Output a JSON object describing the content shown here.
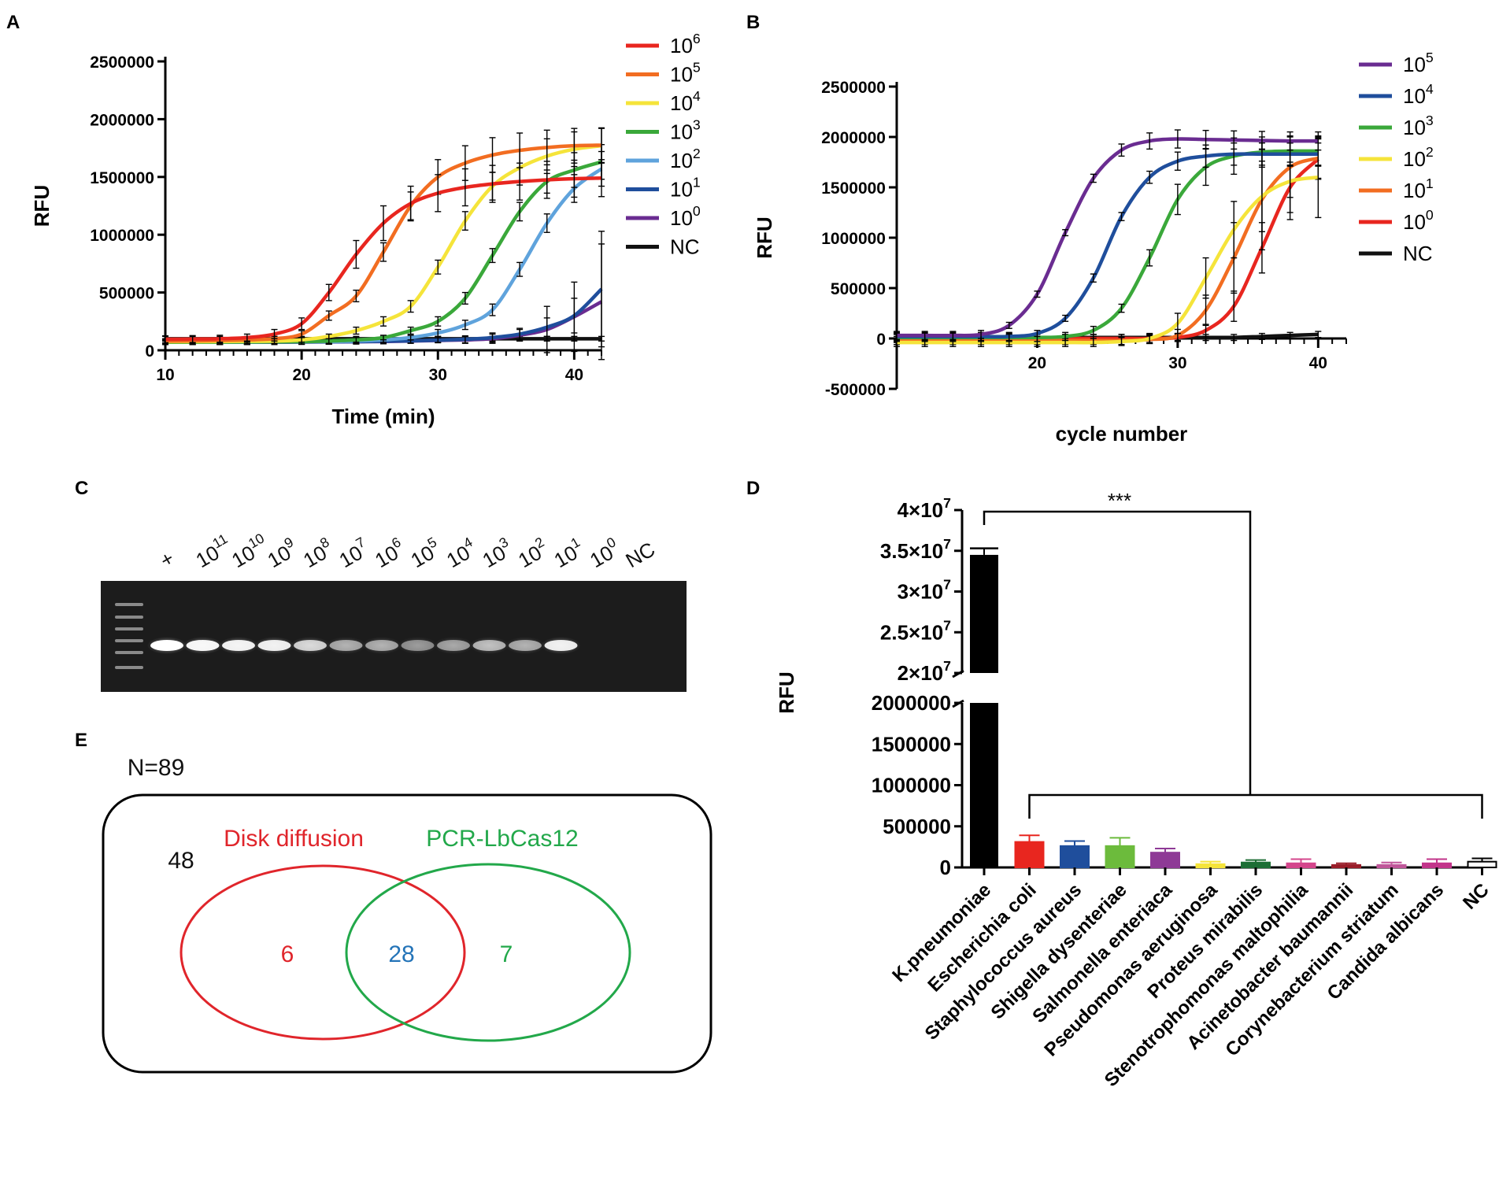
{
  "chart_data": [
    {
      "panel": "A",
      "type": "line",
      "xlabel": "Time (min)",
      "ylabel": "RFU",
      "xlim": [
        10,
        42
      ],
      "ylim": [
        0,
        2500000
      ],
      "xticks": [
        10,
        20,
        30,
        40
      ],
      "yticks": [
        0,
        500000,
        1000000,
        1500000,
        2000000,
        2500000
      ],
      "ytick_labels": [
        "0",
        "500000",
        "1000000",
        "1500000",
        "2000000",
        "2500000"
      ],
      "x": [
        10,
        12,
        14,
        16,
        18,
        20,
        22,
        24,
        26,
        28,
        30,
        32,
        34,
        36,
        38,
        40,
        42
      ],
      "legend_position": "top-right",
      "series": [
        {
          "name": "10^6",
          "label_base": "10",
          "label_exp": "6",
          "color": "#e8261f",
          "values": [
            95000,
            97000,
            100000,
            110000,
            140000,
            230000,
            500000,
            830000,
            1100000,
            1270000,
            1360000,
            1410000,
            1440000,
            1460000,
            1475000,
            1485000,
            1490000
          ],
          "errors": [
            30000,
            30000,
            30000,
            30000,
            40000,
            50000,
            70000,
            120000,
            150000,
            150000,
            160000,
            160000,
            160000,
            160000,
            160000,
            160000,
            160000
          ]
        },
        {
          "name": "10^5",
          "label_base": "10",
          "label_exp": "5",
          "color": "#f26d21",
          "values": [
            80000,
            82000,
            85000,
            90000,
            100000,
            140000,
            300000,
            470000,
            850000,
            1250000,
            1500000,
            1620000,
            1690000,
            1730000,
            1755000,
            1770000,
            1775000
          ],
          "errors": [
            20000,
            20000,
            20000,
            20000,
            20000,
            30000,
            40000,
            50000,
            80000,
            120000,
            150000,
            150000,
            150000,
            150000,
            150000,
            150000,
            150000
          ]
        },
        {
          "name": "10^4",
          "label_base": "10",
          "label_exp": "4",
          "color": "#f5e43a",
          "values": [
            75000,
            75000,
            76000,
            78000,
            80000,
            90000,
            120000,
            170000,
            250000,
            380000,
            720000,
            1120000,
            1420000,
            1580000,
            1680000,
            1740000,
            1770000
          ],
          "errors": [
            20000,
            20000,
            20000,
            20000,
            20000,
            20000,
            20000,
            30000,
            40000,
            50000,
            60000,
            80000,
            120000,
            150000,
            150000,
            150000,
            150000
          ]
        },
        {
          "name": "10^3",
          "label_base": "10",
          "label_exp": "3",
          "color": "#3aa83a",
          "values": [
            70000,
            70000,
            71000,
            72000,
            73000,
            75000,
            80000,
            90000,
            110000,
            170000,
            250000,
            450000,
            820000,
            1200000,
            1460000,
            1560000,
            1630000
          ],
          "errors": [
            20000,
            20000,
            20000,
            20000,
            20000,
            20000,
            20000,
            20000,
            20000,
            30000,
            40000,
            50000,
            60000,
            80000,
            100000,
            150000,
            150000
          ]
        },
        {
          "name": "10^2",
          "label_base": "10",
          "label_exp": "2",
          "color": "#5fa3dc",
          "values": [
            70000,
            70000,
            70000,
            71000,
            72000,
            73000,
            75000,
            80000,
            90000,
            110000,
            150000,
            220000,
            350000,
            700000,
            1100000,
            1400000,
            1570000
          ],
          "errors": [
            20000,
            20000,
            20000,
            20000,
            20000,
            20000,
            20000,
            20000,
            20000,
            20000,
            30000,
            40000,
            50000,
            60000,
            80000,
            120000,
            150000
          ]
        },
        {
          "name": "10^1",
          "label_base": "10",
          "label_exp": "1",
          "color": "#1f4e9c",
          "values": [
            70000,
            70000,
            70000,
            70000,
            71000,
            72000,
            73000,
            75000,
            78000,
            82000,
            88000,
            95000,
            110000,
            140000,
            200000,
            300000,
            530000
          ],
          "errors": [
            20000,
            20000,
            20000,
            20000,
            20000,
            20000,
            20000,
            20000,
            20000,
            20000,
            20000,
            30000,
            40000,
            50000,
            80000,
            150000,
            500000
          ]
        },
        {
          "name": "10^0",
          "label_base": "10",
          "label_exp": "0",
          "color": "#6a2c91",
          "values": [
            70000,
            70000,
            70000,
            70000,
            70000,
            71000,
            72000,
            74000,
            76000,
            80000,
            85000,
            90000,
            100000,
            130000,
            180000,
            290000,
            420000
          ],
          "errors": [
            20000,
            20000,
            20000,
            20000,
            20000,
            20000,
            20000,
            20000,
            20000,
            20000,
            20000,
            30000,
            40000,
            50000,
            200000,
            300000,
            500000
          ]
        },
        {
          "name": "NC",
          "label_base": "NC",
          "label_exp": "",
          "color": "#111111",
          "values": [
            100000,
            100000,
            100000,
            100000,
            100000,
            100000,
            100000,
            100000,
            100000,
            100000,
            100000,
            100000,
            100000,
            100000,
            100000,
            100000,
            100000
          ],
          "errors": [
            20000,
            20000,
            20000,
            20000,
            20000,
            20000,
            20000,
            20000,
            20000,
            20000,
            20000,
            20000,
            20000,
            20000,
            20000,
            20000,
            20000
          ]
        }
      ]
    },
    {
      "panel": "B",
      "type": "line",
      "xlabel": "cycle number",
      "ylabel": "RFU",
      "xlim": [
        10,
        42
      ],
      "ylim": [
        -500000,
        2500000
      ],
      "xticks": [
        20,
        30,
        40
      ],
      "yticks": [
        -500000,
        0,
        500000,
        1000000,
        1500000,
        2000000,
        2500000
      ],
      "ytick_labels": [
        "-500000",
        "0",
        "500000",
        "1000000",
        "1500000",
        "2000000",
        "2500000"
      ],
      "x": [
        10,
        12,
        14,
        16,
        18,
        20,
        22,
        24,
        26,
        28,
        30,
        32,
        34,
        36,
        38,
        40
      ],
      "legend_position": "top-right",
      "series": [
        {
          "name": "10^5",
          "label_base": "10",
          "label_exp": "5",
          "color": "#6a2c91",
          "values": [
            30000,
            30000,
            30000,
            40000,
            130000,
            440000,
            1050000,
            1590000,
            1870000,
            1960000,
            1980000,
            1975000,
            1970000,
            1965000,
            1960000,
            1960000
          ],
          "errors": [
            40000,
            40000,
            40000,
            40000,
            30000,
            30000,
            30000,
            40000,
            60000,
            80000,
            90000,
            90000,
            90000,
            90000,
            90000,
            90000
          ]
        },
        {
          "name": "10^4",
          "label_base": "10",
          "label_exp": "4",
          "color": "#1f4e9c",
          "values": [
            20000,
            20000,
            20000,
            20000,
            20000,
            50000,
            200000,
            600000,
            1210000,
            1600000,
            1760000,
            1810000,
            1830000,
            1830000,
            1830000,
            1830000
          ],
          "errors": [
            40000,
            40000,
            40000,
            40000,
            40000,
            30000,
            30000,
            40000,
            40000,
            60000,
            90000,
            110000,
            110000,
            110000,
            110000,
            110000
          ]
        },
        {
          "name": "10^3",
          "label_base": "10",
          "label_exp": "3",
          "color": "#3aa83a",
          "values": [
            10000,
            10000,
            10000,
            10000,
            10000,
            10000,
            20000,
            80000,
            300000,
            800000,
            1380000,
            1700000,
            1810000,
            1850000,
            1860000,
            1860000
          ],
          "errors": [
            40000,
            40000,
            40000,
            40000,
            40000,
            40000,
            40000,
            40000,
            40000,
            80000,
            150000,
            180000,
            180000,
            150000,
            150000,
            150000
          ]
        },
        {
          "name": "10^2",
          "label_base": "10",
          "label_exp": "2",
          "color": "#f5e43a",
          "values": [
            -40000,
            -40000,
            -40000,
            -40000,
            -40000,
            -40000,
            -40000,
            -40000,
            -30000,
            0,
            150000,
            600000,
            1080000,
            1410000,
            1560000,
            1600000
          ],
          "errors": [
            40000,
            40000,
            40000,
            40000,
            40000,
            40000,
            40000,
            40000,
            40000,
            50000,
            100000,
            200000,
            280000,
            350000,
            380000,
            400000
          ]
        },
        {
          "name": "10^1",
          "label_base": "10",
          "label_exp": "1",
          "color": "#f26d21",
          "values": [
            -20000,
            -20000,
            -20000,
            -20000,
            -20000,
            -20000,
            -20000,
            -20000,
            -20000,
            -10000,
            30000,
            280000,
            800000,
            1380000,
            1700000,
            1790000
          ],
          "errors": [
            40000,
            40000,
            40000,
            40000,
            40000,
            40000,
            40000,
            40000,
            40000,
            40000,
            60000,
            150000,
            350000,
            500000,
            300000,
            200000
          ]
        },
        {
          "name": "10^0",
          "label_base": "10",
          "label_exp": "0",
          "color": "#e8261f",
          "values": [
            0,
            0,
            0,
            0,
            0,
            0,
            0,
            0,
            0,
            0,
            10000,
            80000,
            320000,
            900000,
            1500000,
            1780000
          ],
          "errors": [
            40000,
            40000,
            40000,
            40000,
            40000,
            40000,
            40000,
            40000,
            40000,
            40000,
            40000,
            60000,
            150000,
            250000,
            250000,
            200000
          ]
        },
        {
          "name": "NC",
          "label_base": "NC",
          "label_exp": "",
          "color": "#111111",
          "values": [
            10000,
            10000,
            10000,
            10000,
            10000,
            10000,
            10000,
            10000,
            10000,
            10000,
            10000,
            10000,
            10000,
            20000,
            30000,
            40000
          ],
          "errors": [
            30000,
            30000,
            30000,
            30000,
            30000,
            30000,
            30000,
            30000,
            30000,
            30000,
            30000,
            30000,
            30000,
            30000,
            30000,
            30000
          ]
        }
      ]
    },
    {
      "panel": "D",
      "type": "bar",
      "ylabel": "RFU",
      "axis_break": true,
      "lower_range": [
        0,
        2000000
      ],
      "upper_range": [
        20000000,
        40000000
      ],
      "lower_ticks": [
        0,
        500000,
        1000000,
        1500000,
        2000000
      ],
      "lower_tick_labels": [
        "0",
        "500000",
        "1000000",
        "1500000",
        "2000000"
      ],
      "upper_ticks": [
        20000000,
        25000000,
        30000000,
        35000000,
        40000000
      ],
      "upper_tick_labels": [
        {
          "mant": "2×10",
          "exp": "7"
        },
        {
          "mant": "2.5×10",
          "exp": "7"
        },
        {
          "mant": "3×10",
          "exp": "7"
        },
        {
          "mant": "3.5×10",
          "exp": "7"
        },
        {
          "mant": "4×10",
          "exp": "7"
        }
      ],
      "significance": "***",
      "categories": [
        "K.pneumoniae",
        "Escherichia coli",
        "Staphylococcus aureus",
        "Shigella dysenteriae",
        "Salmonella enteriaca",
        "Pseudomonas aeruginosa",
        "Proteus mirabilis",
        "Stenotrophomonas maltophilia",
        "Acinetobacter baumannii",
        "Corynebacterium striatum",
        "Candida albicans",
        "NC"
      ],
      "values": [
        34500000,
        310000,
        260000,
        260000,
        180000,
        40000,
        60000,
        50000,
        30000,
        30000,
        50000,
        70000
      ],
      "errors": [
        800000,
        80000,
        60000,
        100000,
        50000,
        30000,
        30000,
        50000,
        20000,
        30000,
        50000,
        40000
      ],
      "colors": [
        "#000000",
        "#e8261f",
        "#1f4e9c",
        "#6cbb3c",
        "#8e3a96",
        "#f5e43a",
        "#1d6e35",
        "#d4468c",
        "#9a1e2a",
        "#c0569a",
        "#c2348a",
        "#ffffff"
      ]
    }
  ],
  "panel_labels": {
    "a": "A",
    "b": "B",
    "c": "C",
    "d": "D",
    "e": "E"
  },
  "gel": {
    "lanes": [
      {
        "base": "+",
        "exp": ""
      },
      {
        "base": "10",
        "exp": "11"
      },
      {
        "base": "10",
        "exp": "10"
      },
      {
        "base": "10",
        "exp": "9"
      },
      {
        "base": "10",
        "exp": "8"
      },
      {
        "base": "10",
        "exp": "7"
      },
      {
        "base": "10",
        "exp": "6"
      },
      {
        "base": "10",
        "exp": "5"
      },
      {
        "base": "10",
        "exp": "4"
      },
      {
        "base": "10",
        "exp": "3"
      },
      {
        "base": "10",
        "exp": "2"
      },
      {
        "base": "10",
        "exp": "1"
      },
      {
        "base": "10",
        "exp": "0"
      },
      {
        "base": "NC",
        "exp": ""
      }
    ],
    "band_intensity": [
      1.0,
      0.95,
      0.92,
      0.9,
      0.75,
      0.55,
      0.55,
      0.45,
      0.5,
      0.62,
      0.55,
      0.9,
      0,
      0
    ]
  },
  "venn": {
    "total": "N=89",
    "outside": "48",
    "set_a": "Disk diffusion",
    "set_b": "PCR-LbCas12",
    "only_a": "6",
    "both": "28",
    "only_b": "7",
    "color_a": "#e0252b",
    "color_b": "#22a84a",
    "color_both": "#2474b8"
  }
}
